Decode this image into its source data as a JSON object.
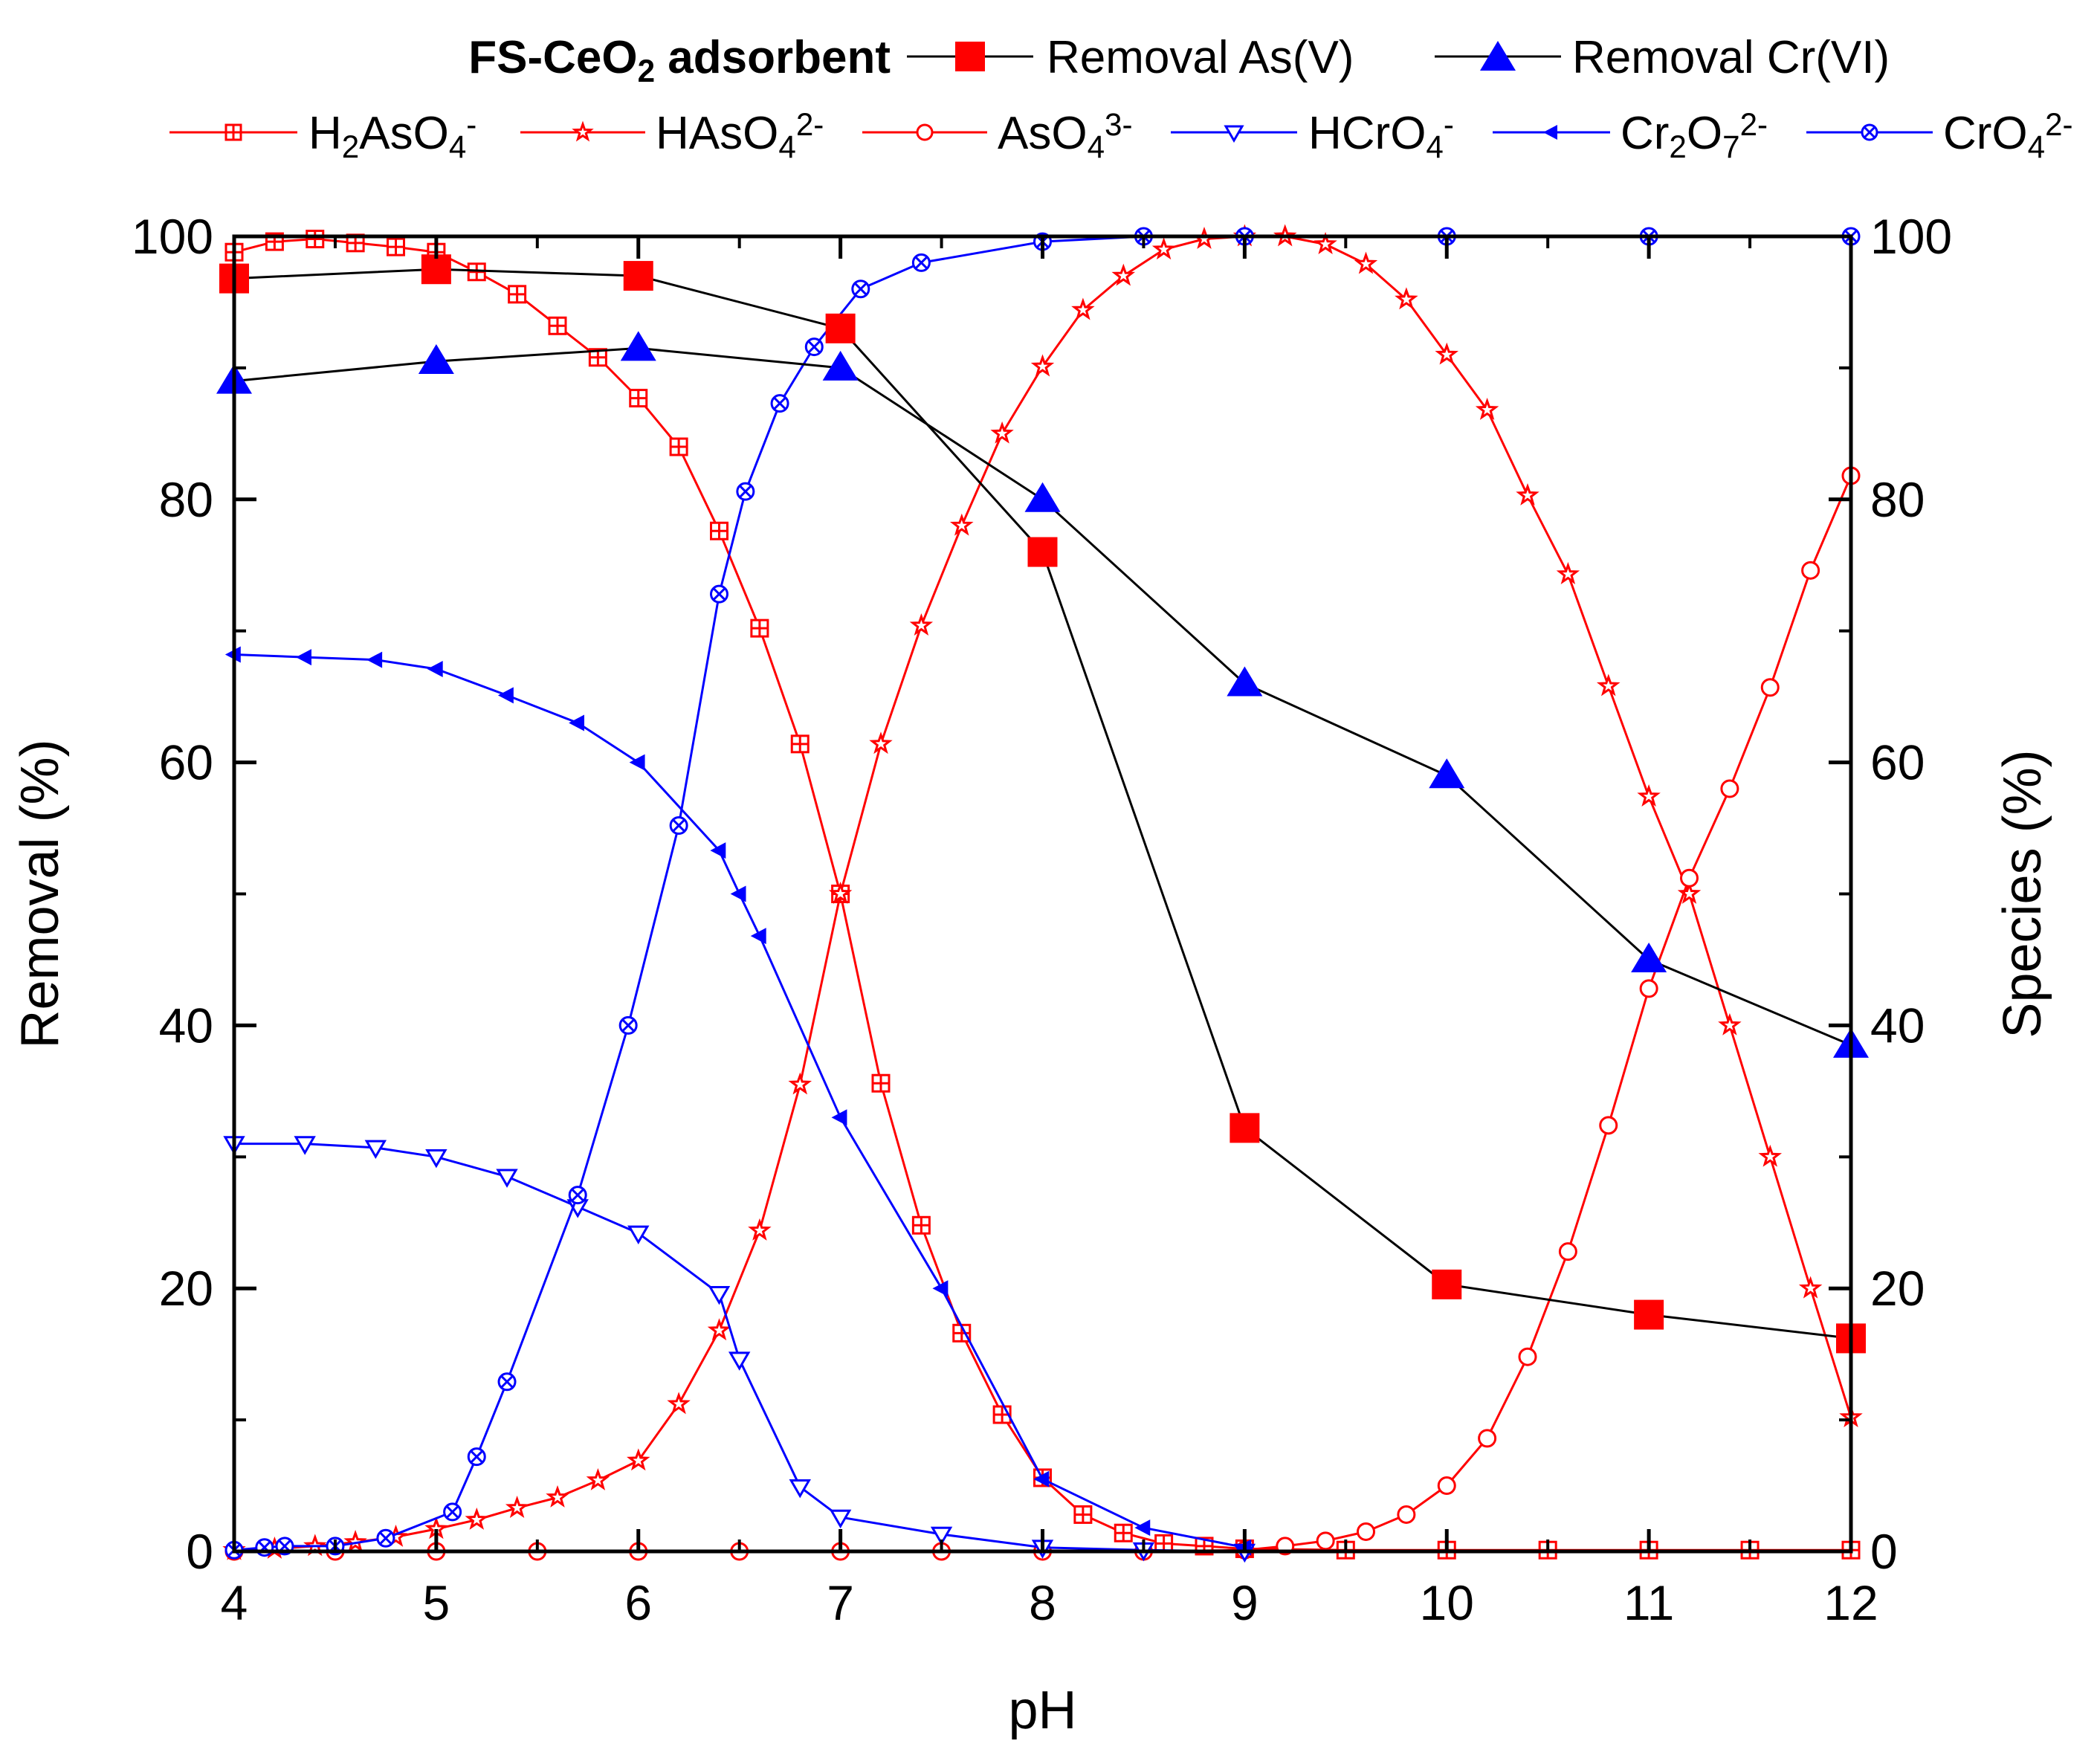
{
  "chart_data": {
    "type": "line",
    "legend_title": "FS-CeO",
    "legend_title_sub": "2",
    "legend_title_tail": " adsorbent",
    "x_label": "pH",
    "y_label_left": "Removal (%)",
    "y_label_right": "Species (%)",
    "x_range": [
      4,
      12
    ],
    "y_range_left": [
      0,
      100
    ],
    "y_range_right": [
      0,
      100
    ],
    "x_ticks": [
      "4",
      "5",
      "6",
      "7",
      "8",
      "9",
      "10",
      "11",
      "12"
    ],
    "y_ticks": [
      "0",
      "20",
      "40",
      "60",
      "80",
      "100"
    ],
    "y_ticks_right": [
      "0",
      "20",
      "40",
      "60",
      "80",
      "100"
    ],
    "colors": {
      "black": "#000000",
      "red": "#ff0000",
      "blue": "#0000ff",
      "marker_red": "#ff0000",
      "marker_blue": "#0000ff"
    },
    "removal_series": [
      {
        "name": "Removal As(V)",
        "marker": "square",
        "color": "#ff0000",
        "x": [
          4,
          5,
          6,
          7,
          8,
          9,
          10,
          11,
          12
        ],
        "y": [
          96.8,
          97.5,
          97.0,
          93.0,
          76.0,
          32.2,
          20.3,
          18.0,
          16.2
        ]
      },
      {
        "name": "Removal Cr(VI)",
        "marker": "triangle-up",
        "color": "#0000ff",
        "x": [
          4,
          5,
          6,
          7,
          8,
          9,
          10,
          11,
          12
        ],
        "y": [
          89.0,
          90.5,
          91.5,
          90.0,
          80.0,
          66.0,
          59.0,
          45.0,
          38.5
        ]
      }
    ],
    "species_series": [
      {
        "name_main": "H",
        "name_sub": "2",
        "name_mid": "AsO",
        "name_sub2": "4",
        "name_sup": "-",
        "color": "#ff0000",
        "marker": "square-plus",
        "x": [
          4,
          4.2,
          4.4,
          4.6,
          4.8,
          5.0,
          5.2,
          5.4,
          5.6,
          5.8,
          6.0,
          6.2,
          6.4,
          6.6,
          6.8,
          7.0,
          7.2,
          7.4,
          7.6,
          7.8,
          8.0,
          8.2,
          8.4,
          8.6,
          8.8,
          9.0,
          9.5,
          10,
          10.5,
          11,
          11.5,
          12
        ],
        "y": [
          98.8,
          99.6,
          99.8,
          99.5,
          99.2,
          98.8,
          97.3,
          95.6,
          93.2,
          90.8,
          87.7,
          84.0,
          77.6,
          70.2,
          61.4,
          50.0,
          35.6,
          24.8,
          16.6,
          10.4,
          5.6,
          2.8,
          1.4,
          0.6,
          0.4,
          0.2,
          0.1,
          0.1,
          0.1,
          0.1,
          0.1,
          0.1
        ]
      },
      {
        "name_main": "",
        "name_sub": "",
        "name_mid": "HAsO",
        "name_sub2": "4",
        "name_sup": "2-",
        "color": "#ff0000",
        "marker": "star",
        "x": [
          4,
          4.2,
          4.4,
          4.6,
          4.8,
          5.0,
          5.2,
          5.4,
          5.6,
          5.8,
          6.0,
          6.2,
          6.4,
          6.6,
          6.8,
          7.0,
          7.2,
          7.4,
          7.6,
          7.8,
          8.0,
          8.2,
          8.4,
          8.6,
          8.8,
          9.0,
          9.2,
          9.4,
          9.6,
          9.8,
          10.0,
          10.2,
          10.4,
          10.6,
          10.8,
          11.0,
          11.2,
          11.4,
          11.6,
          11.8,
          12.0
        ],
        "y": [
          0.1,
          0.2,
          0.4,
          0.7,
          1.1,
          1.7,
          2.4,
          3.3,
          4.1,
          5.4,
          6.9,
          11.2,
          16.8,
          24.4,
          35.5,
          50.0,
          61.4,
          70.4,
          78.0,
          85.0,
          90.1,
          94.4,
          97.0,
          99.0,
          99.8,
          100,
          100,
          99.4,
          97.9,
          95.2,
          91.0,
          86.8,
          80.3,
          74.3,
          65.8,
          57.4,
          50.0,
          40.0,
          30.0,
          20.0,
          10.2
        ]
      },
      {
        "name_main": "",
        "name_sub": "",
        "name_mid": "AsO",
        "name_sub2": "4",
        "name_sup": "3-",
        "color": "#ff0000",
        "marker": "circle",
        "x": [
          4,
          4.5,
          5,
          5.5,
          6,
          6.5,
          7,
          7.5,
          8,
          8.5,
          9.0,
          9.2,
          9.4,
          9.6,
          9.8,
          10.0,
          10.2,
          10.4,
          10.6,
          10.8,
          11.0,
          11.2,
          11.4,
          11.6,
          11.8,
          12.0
        ],
        "y": [
          0,
          0,
          0,
          0,
          0,
          0,
          0,
          0,
          0,
          0,
          0.1,
          0.4,
          0.8,
          1.5,
          2.8,
          5.0,
          8.6,
          14.8,
          22.8,
          32.4,
          42.8,
          51.2,
          58.0,
          65.7,
          74.6,
          81.8
        ]
      },
      {
        "name_main": "",
        "name_sub": "",
        "name_mid": "HCrO",
        "name_sub2": "4",
        "name_sup": "-",
        "color": "#0000ff",
        "marker": "triangle-down",
        "x": [
          4,
          4.35,
          4.7,
          5.0,
          5.35,
          5.7,
          6.0,
          6.4,
          6.5,
          6.8,
          7.0,
          7.5,
          8.0,
          8.5,
          9.0
        ],
        "y": [
          31.0,
          31.0,
          30.7,
          30.0,
          28.5,
          26.2,
          24.2,
          19.6,
          14.6,
          4.9,
          2.6,
          1.3,
          0.3,
          0.1,
          0
        ]
      },
      {
        "name_main": "Cr",
        "name_sub": "2",
        "name_mid": "O",
        "name_sub2": "7",
        "name_sup": "2-",
        "color": "#0000ff",
        "marker": "triangle-left",
        "x": [
          4,
          4.35,
          4.7,
          5.0,
          5.35,
          5.7,
          6.0,
          6.4,
          6.5,
          6.6,
          7.0,
          7.5,
          8.0,
          8.5,
          9.0
        ],
        "y": [
          68.2,
          68.0,
          67.8,
          67.1,
          65.1,
          63.0,
          60.0,
          53.3,
          50.0,
          46.8,
          33.0,
          20.0,
          5.5,
          1.8,
          0.3
        ]
      },
      {
        "name_main": "",
        "name_sub": "",
        "name_mid": "CrO",
        "name_sub2": "4",
        "name_sup": "2-",
        "color": "#0000ff",
        "marker": "circle-x",
        "x": [
          4,
          4.15,
          4.25,
          4.5,
          4.75,
          5.08,
          5.2,
          5.35,
          5.7,
          5.95,
          6.2,
          6.4,
          6.53,
          6.7,
          6.87,
          7.1,
          7.4,
          8.0,
          8.5,
          9.0,
          10.0,
          11.0,
          12.0
        ],
        "y": [
          0.1,
          0.3,
          0.4,
          0.4,
          1.0,
          3.0,
          7.2,
          12.9,
          27.1,
          40.0,
          55.2,
          72.8,
          80.6,
          87.3,
          91.6,
          96.0,
          98.0,
          99.6,
          100,
          100,
          100,
          100,
          100
        ]
      }
    ]
  }
}
